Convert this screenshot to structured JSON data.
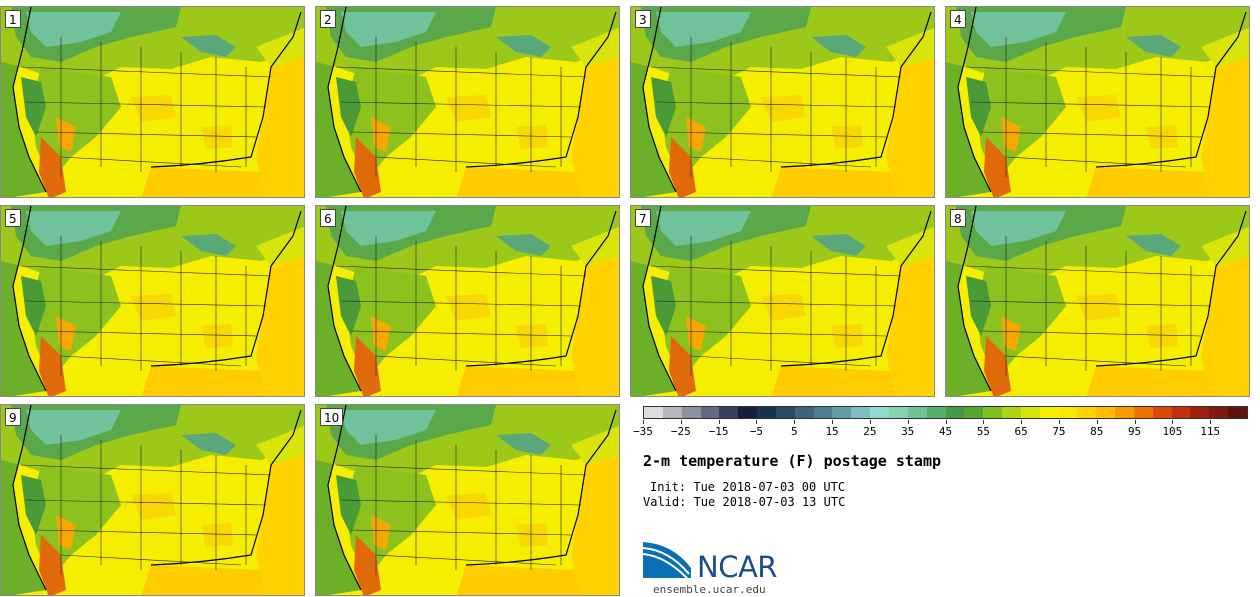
{
  "panels": [
    {
      "number": "1"
    },
    {
      "number": "2"
    },
    {
      "number": "3"
    },
    {
      "number": "4"
    },
    {
      "number": "5"
    },
    {
      "number": "6"
    },
    {
      "number": "7"
    },
    {
      "number": "8"
    },
    {
      "number": "9"
    },
    {
      "number": "10"
    }
  ],
  "colorbar": {
    "colors": [
      "#dcdcdc",
      "#b5b5bd",
      "#8c90a0",
      "#626a82",
      "#36405d",
      "#17203b",
      "#19324d",
      "#2c4b63",
      "#3f6478",
      "#4e7d8e",
      "#629ea7",
      "#7dbfbf",
      "#8fd9cf",
      "#83d3b1",
      "#6ec293",
      "#58ad70",
      "#449a46",
      "#54a832",
      "#7fbf1e",
      "#aed313",
      "#d6e40b",
      "#f5f000",
      "#fbe800",
      "#fdd400",
      "#fdbd00",
      "#fb9a00",
      "#f07100",
      "#d9490a",
      "#c23010",
      "#a0200f",
      "#7f1a10",
      "#5e140c"
    ],
    "tick_labels": [
      "−35",
      "−25",
      "−15",
      "−5",
      "5",
      "15",
      "25",
      "35",
      "45",
      "55",
      "65",
      "75",
      "85",
      "95",
      "105",
      "115"
    ],
    "colors_meaning": "2-m temperature shading levels"
  },
  "title": "2-m temperature (F) postage stamp",
  "init_line": "Init: Tue 2018-07-03 00 UTC",
  "valid_line": "Valid: Tue 2018-07-03 13 UTC",
  "logo_text": "NCAR",
  "website": "ensemble.ucar.edu"
}
